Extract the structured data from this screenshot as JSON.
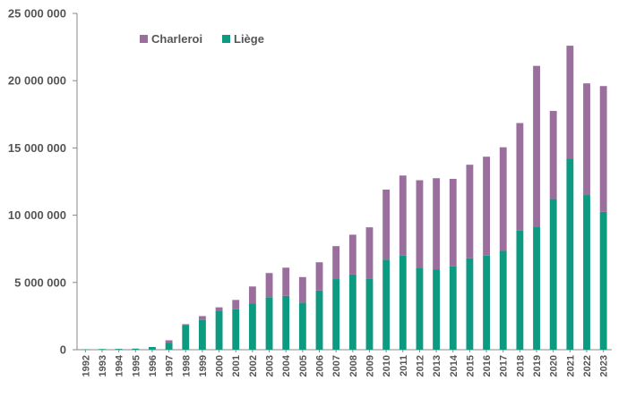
{
  "chart_data": {
    "type": "bar",
    "stacked": true,
    "categories": [
      "1992",
      "1993",
      "1994",
      "1995",
      "1996",
      "1997",
      "1998",
      "1999",
      "2000",
      "2001",
      "2002",
      "2003",
      "2004",
      "2005",
      "2006",
      "2007",
      "2008",
      "2009",
      "2010",
      "2011",
      "2012",
      "2013",
      "2014",
      "2015",
      "2016",
      "2017",
      "2018",
      "2019",
      "2020",
      "2021",
      "2022",
      "2023"
    ],
    "series": [
      {
        "name": "Liège",
        "color": "#0e9a80",
        "values": [
          30000,
          50000,
          60000,
          80000,
          200000,
          500000,
          1850000,
          2200000,
          2900000,
          3000000,
          3450000,
          3900000,
          4000000,
          3500000,
          4400000,
          5250000,
          5600000,
          5300000,
          6700000,
          7000000,
          6050000,
          5950000,
          6200000,
          6800000,
          7000000,
          7350000,
          8850000,
          9150000,
          11200000,
          14200000,
          11500000,
          10250000
        ]
      },
      {
        "name": "Charleroi",
        "color": "#9a6f9e",
        "values": [
          0,
          0,
          0,
          0,
          0,
          200000,
          50000,
          300000,
          250000,
          700000,
          1250000,
          1800000,
          2100000,
          1900000,
          2100000,
          2450000,
          2950000,
          3800000,
          5200000,
          5950000,
          6550000,
          6800000,
          6500000,
          6950000,
          7350000,
          7700000,
          8000000,
          11950000,
          6550000,
          8400000,
          8300000,
          9350000
        ]
      }
    ],
    "ylim": [
      0,
      25000000
    ],
    "yticks": [
      0,
      5000000,
      10000000,
      15000000,
      20000000,
      25000000
    ],
    "ytick_labels": [
      "0",
      "5 000 000",
      "10 000 000",
      "15 000 000",
      "20 000 000",
      "25 000 000"
    ],
    "legend_position": "top-left",
    "title": "",
    "xlabel": "",
    "ylabel": ""
  }
}
